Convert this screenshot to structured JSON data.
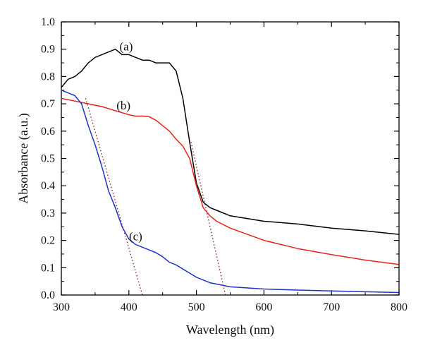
{
  "chart_data": {
    "type": "line",
    "xlabel": "Wavelength (nm)",
    "ylabel": "Absorbance (a.u.)",
    "xlim": [
      300,
      800
    ],
    "ylim": [
      0.0,
      1.0
    ],
    "x_ticks": [
      300,
      400,
      500,
      600,
      700,
      800
    ],
    "x_tick_labels": [
      "300",
      "400",
      "500",
      "600",
      "700",
      "800"
    ],
    "y_ticks": [
      0.0,
      0.1,
      0.2,
      0.3,
      0.4,
      0.5,
      0.6,
      0.7,
      0.8,
      0.9,
      1.0
    ],
    "y_tick_labels": [
      "0.0",
      "0.1",
      "0.2",
      "0.3",
      "0.4",
      "0.5",
      "0.6",
      "0.7",
      "0.8",
      "0.9",
      "1.0"
    ],
    "grid": false,
    "series": [
      {
        "label": "(a)",
        "color": "#000000",
        "x": [
          300,
          310,
          320,
          330,
          340,
          350,
          360,
          370,
          380,
          390,
          400,
          410,
          420,
          430,
          440,
          450,
          460,
          470,
          480,
          490,
          500,
          510,
          520,
          530,
          550,
          600,
          650,
          700,
          750,
          800
        ],
        "y": [
          0.76,
          0.79,
          0.8,
          0.82,
          0.85,
          0.87,
          0.88,
          0.89,
          0.9,
          0.88,
          0.88,
          0.87,
          0.86,
          0.86,
          0.85,
          0.85,
          0.85,
          0.82,
          0.72,
          0.56,
          0.41,
          0.34,
          0.32,
          0.31,
          0.29,
          0.27,
          0.26,
          0.245,
          0.235,
          0.222
        ]
      },
      {
        "label": "(b)",
        "color": "#e8231d",
        "x": [
          300,
          320,
          340,
          360,
          380,
          400,
          410,
          420,
          430,
          440,
          450,
          460,
          470,
          480,
          490,
          500,
          510,
          520,
          530,
          550,
          600,
          650,
          700,
          750,
          800
        ],
        "y": [
          0.72,
          0.71,
          0.7,
          0.69,
          0.675,
          0.66,
          0.655,
          0.655,
          0.653,
          0.64,
          0.62,
          0.6,
          0.57,
          0.545,
          0.5,
          0.4,
          0.32,
          0.29,
          0.27,
          0.245,
          0.2,
          0.17,
          0.148,
          0.128,
          0.112
        ]
      },
      {
        "label": "(c)",
        "color": "#1f33c8",
        "x": [
          300,
          310,
          320,
          330,
          340,
          350,
          360,
          370,
          380,
          390,
          400,
          410,
          420,
          430,
          440,
          450,
          460,
          470,
          480,
          490,
          500,
          510,
          520,
          530,
          540,
          550,
          600,
          650,
          700,
          750,
          800
        ],
        "y": [
          0.75,
          0.74,
          0.73,
          0.7,
          0.62,
          0.55,
          0.47,
          0.38,
          0.32,
          0.25,
          0.205,
          0.185,
          0.175,
          0.165,
          0.155,
          0.14,
          0.12,
          0.11,
          0.095,
          0.08,
          0.065,
          0.055,
          0.045,
          0.04,
          0.035,
          0.03,
          0.022,
          0.018,
          0.015,
          0.012,
          0.009
        ]
      }
    ],
    "tangent_lines": [
      {
        "series": "(a)",
        "color": "#8b1a1a",
        "x": [
          492,
          543
        ],
        "y": [
          0.56,
          0.0
        ]
      },
      {
        "series": "(c)",
        "color": "#8b1a1a",
        "x": [
          336,
          420
        ],
        "y": [
          0.72,
          0.0
        ]
      }
    ],
    "annotations": [
      {
        "text": "(a)",
        "x": 396,
        "y": 0.895
      },
      {
        "text": "(b)",
        "x": 392,
        "y": 0.68
      },
      {
        "text": "(c)",
        "x": 410,
        "y": 0.2
      }
    ]
  }
}
